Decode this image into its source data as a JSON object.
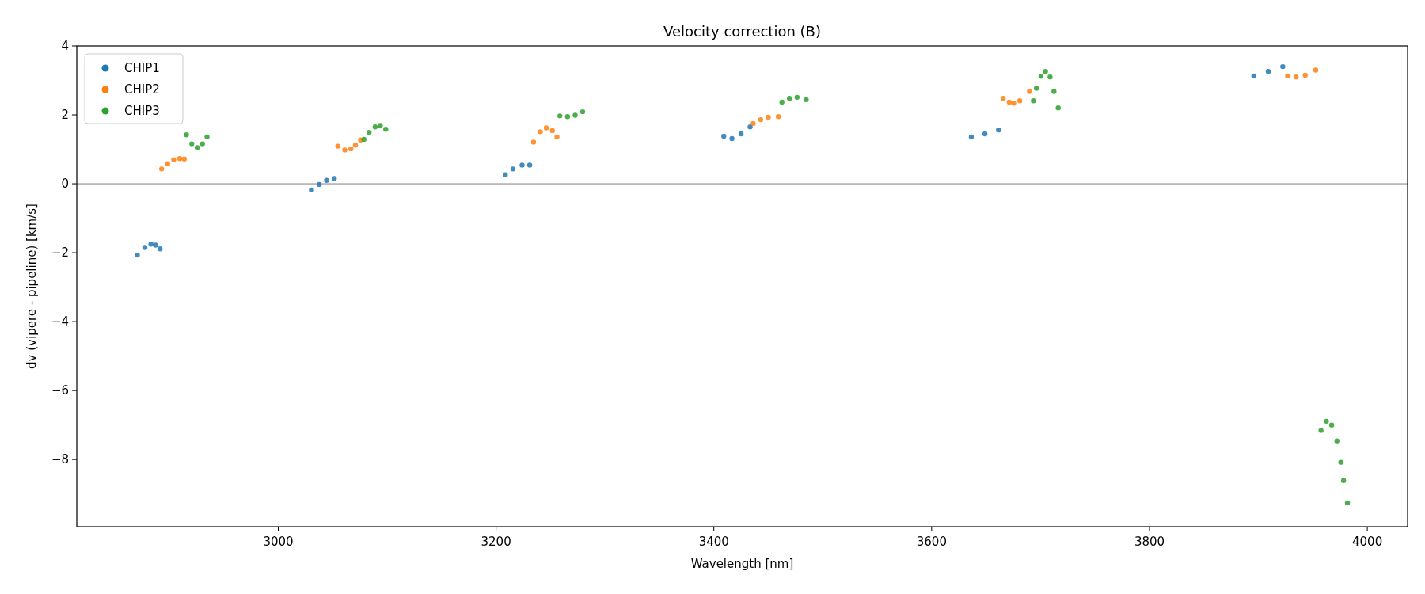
{
  "chart_data": {
    "type": "scatter",
    "title": "Velocity correction (B)",
    "xlabel": "Wavelength [nm]",
    "ylabel": "dv (vipere - pipeline) [km/s]",
    "xlim": [
      2815,
      4037
    ],
    "ylim": [
      -9.95,
      4
    ],
    "xticks": [
      3000,
      3200,
      3400,
      3600,
      3800,
      4000
    ],
    "yticks": [
      -8,
      -6,
      -4,
      -2,
      0,
      2,
      4
    ],
    "grid": false,
    "legend": "top left",
    "marker": "circle",
    "ref_lines": [
      {
        "axis": "y",
        "value": 0,
        "color": "#808080"
      }
    ],
    "series": [
      {
        "name": "CHIP1",
        "color": "#1f77b4",
        "x": [
          2870.6,
          2877.5,
          2883.1,
          2887.3,
          2891.5,
          3030.5,
          3037.5,
          3044.4,
          3051.4,
          3208.5,
          3215.5,
          3223.9,
          3230.9,
          3409.1,
          3416.6,
          3425.0,
          3433.3,
          3636.4,
          3648.9,
          3661.4,
          3895.8,
          3909.1,
          3922.4
        ],
        "values": [
          -2.07,
          -1.85,
          -1.75,
          -1.78,
          -1.89,
          -0.18,
          -0.02,
          0.1,
          0.15,
          0.26,
          0.43,
          0.54,
          0.54,
          1.38,
          1.31,
          1.45,
          1.65,
          1.36,
          1.45,
          1.56,
          3.13,
          3.26,
          3.4
        ]
      },
      {
        "name": "CHIP2",
        "color": "#ff7f0e",
        "x": [
          2892.9,
          2898.4,
          2904.0,
          2909.5,
          2913.7,
          3054.7,
          3061.1,
          3066.7,
          3070.9,
          3075.6,
          3234.4,
          3240.6,
          3246.1,
          3251.7,
          3255.9,
          3436.1,
          3443.0,
          3450.0,
          3459.2,
          3665.6,
          3671.2,
          3675.3,
          3680.9,
          3689.8,
          3926.8,
          3934.6,
          3943.0,
          3952.7
        ],
        "values": [
          0.43,
          0.58,
          0.7,
          0.73,
          0.72,
          1.09,
          0.98,
          1.01,
          1.12,
          1.27,
          1.21,
          1.51,
          1.62,
          1.54,
          1.36,
          1.75,
          1.86,
          1.93,
          1.95,
          2.48,
          2.37,
          2.34,
          2.41,
          2.68,
          3.13,
          3.1,
          3.15,
          3.3
        ]
      },
      {
        "name": "CHIP3",
        "color": "#2ca02c",
        "x": [
          2915.7,
          2920.6,
          2925.6,
          2930.4,
          2934.6,
          3078.7,
          3083.4,
          3089.0,
          3093.7,
          3098.7,
          3258.6,
          3265.6,
          3272.6,
          3279.5,
          3462.5,
          3469.4,
          3476.4,
          3484.8,
          3693.4,
          3696.2,
          3700.4,
          3704.5,
          3708.7,
          3712.3,
          3716.2,
          3957.5,
          3962.4,
          3967.3,
          3972.1,
          3975.7,
          3978.2,
          3981.8
        ],
        "values": [
          1.42,
          1.16,
          1.05,
          1.16,
          1.36,
          1.29,
          1.49,
          1.65,
          1.69,
          1.58,
          1.97,
          1.95,
          1.99,
          2.09,
          2.37,
          2.48,
          2.51,
          2.44,
          2.41,
          2.77,
          3.12,
          3.26,
          3.1,
          2.68,
          2.2,
          -7.16,
          -6.89,
          -7.0,
          -7.46,
          -8.08,
          -8.61,
          -9.26
        ]
      }
    ]
  }
}
